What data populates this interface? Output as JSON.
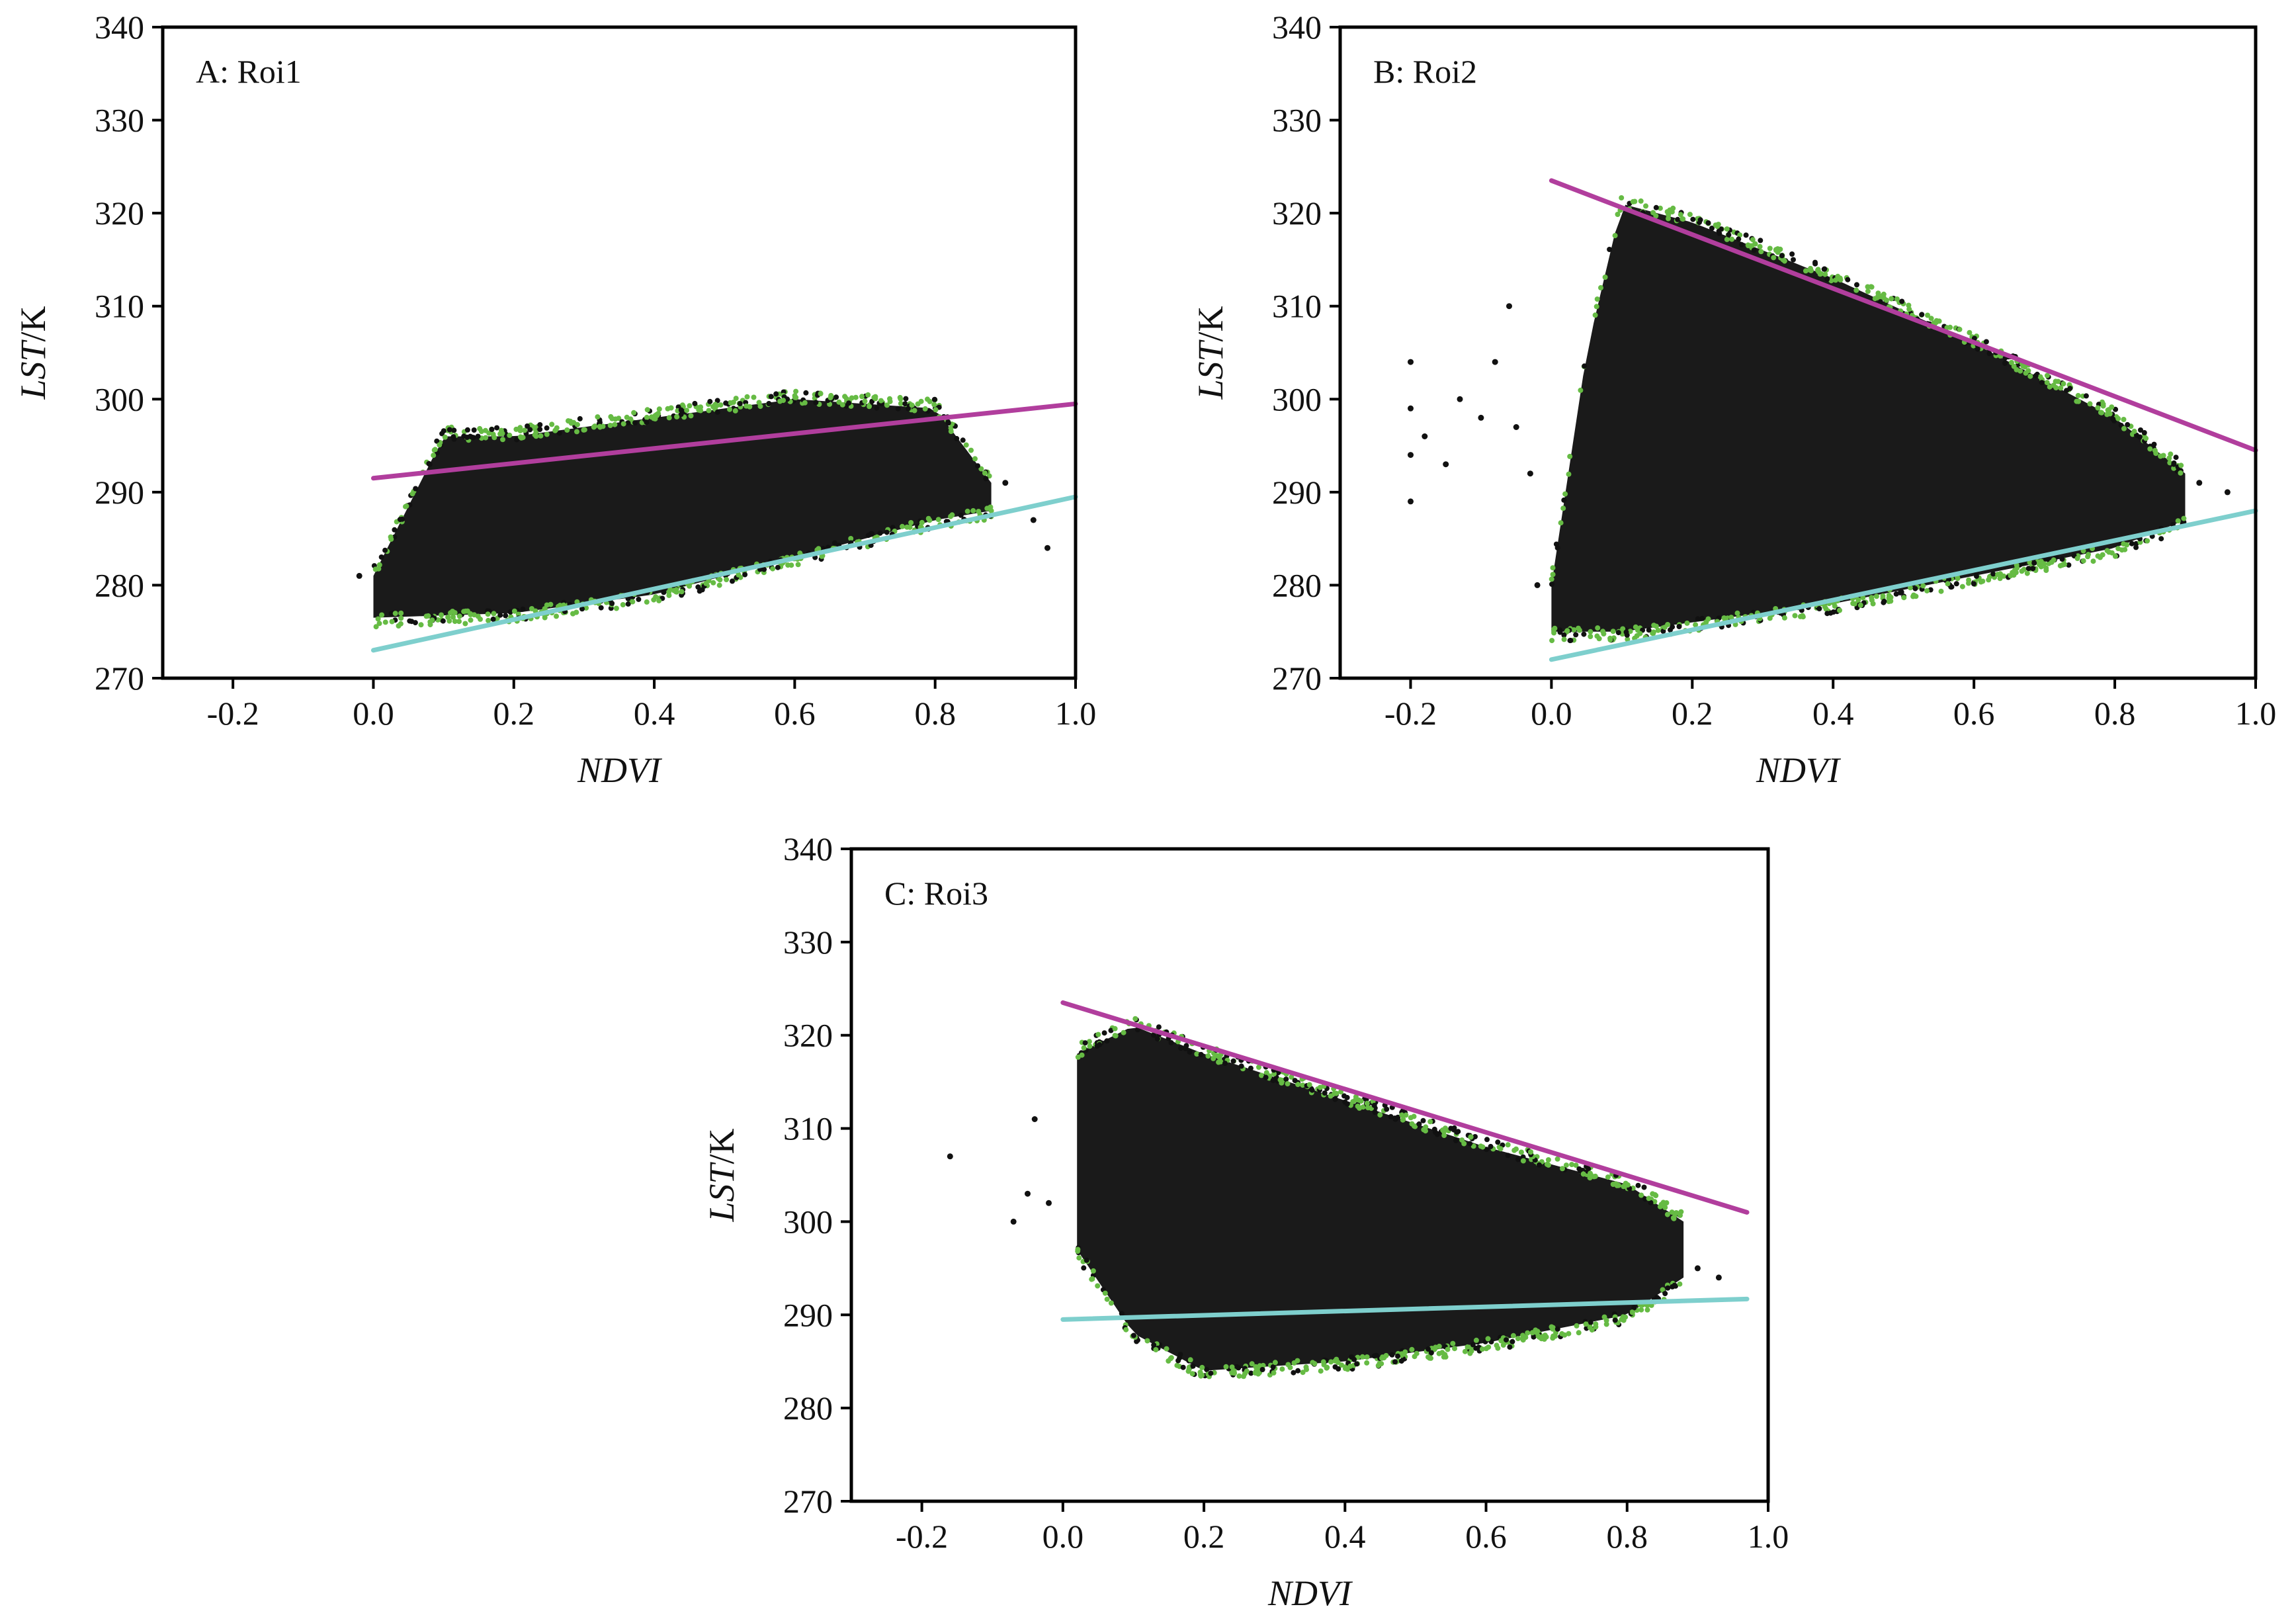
{
  "figure": {
    "colors": {
      "scatter": "#111111",
      "edge_points": "#66bb44",
      "dry_edge": "#b13e9d",
      "wet_edge": "#7ecfcd",
      "axes": "#000000"
    }
  },
  "chart_data": [
    {
      "type": "scatter",
      "panel_label": "A: Roi1",
      "xlabel": "NDVI",
      "ylabel_italic": "LST",
      "ylabel_unit": "/K",
      "xlim": [
        -0.3,
        1.0
      ],
      "ylim": [
        270,
        340
      ],
      "xticks": [
        -0.2,
        0.0,
        0.2,
        0.4,
        0.6,
        0.8,
        1.0
      ],
      "xtick_labels": [
        "-0.2",
        "0.0",
        "0.2",
        "0.4",
        "0.6",
        "0.8",
        "1.0"
      ],
      "yticks": [
        270,
        280,
        290,
        300,
        310,
        320,
        330,
        340
      ],
      "ytick_labels": [
        "270",
        "280",
        "290",
        "300",
        "310",
        "320",
        "330",
        "340"
      ],
      "series": [
        {
          "name": "pixels",
          "kind": "cloud",
          "x_range": [
            0.0,
            0.88
          ],
          "lower_envelope": [
            [
              0.0,
              276.5
            ],
            [
              0.2,
              277
            ],
            [
              0.4,
              279
            ],
            [
              0.6,
              283
            ],
            [
              0.8,
              287
            ],
            [
              0.88,
              288
            ]
          ],
          "upper_envelope": [
            [
              0.0,
              281
            ],
            [
              0.1,
              296
            ],
            [
              0.2,
              296
            ],
            [
              0.4,
              298
            ],
            [
              0.6,
              300
            ],
            [
              0.8,
              299
            ],
            [
              0.88,
              291
            ]
          ],
          "stray_points": [
            [
              -0.02,
              281
            ],
            [
              0.9,
              291
            ],
            [
              0.94,
              287
            ],
            [
              0.96,
              284
            ]
          ]
        },
        {
          "name": "dry edge",
          "kind": "line",
          "x": [
            0.0,
            1.0
          ],
          "y": [
            291.5,
            299.5
          ]
        },
        {
          "name": "wet edge",
          "kind": "line",
          "x": [
            0.0,
            1.0
          ],
          "y": [
            273,
            289.5
          ]
        }
      ]
    },
    {
      "type": "scatter",
      "panel_label": "B: Roi2",
      "xlabel": "NDVI",
      "ylabel_italic": "LST",
      "ylabel_unit": "/K",
      "xlim": [
        -0.3,
        1.0
      ],
      "ylim": [
        270,
        340
      ],
      "xticks": [
        -0.2,
        0.0,
        0.2,
        0.4,
        0.6,
        0.8,
        1.0
      ],
      "xtick_labels": [
        "-0.2",
        "0.0",
        "0.2",
        "0.4",
        "0.6",
        "0.8",
        "1.0"
      ],
      "yticks": [
        270,
        280,
        290,
        300,
        310,
        320,
        330,
        340
      ],
      "ytick_labels": [
        "270",
        "280",
        "290",
        "300",
        "310",
        "320",
        "330",
        "340"
      ],
      "series": [
        {
          "name": "pixels",
          "kind": "cloud",
          "x_range": [
            0.0,
            0.9
          ],
          "lower_envelope": [
            [
              0.0,
              275
            ],
            [
              0.1,
              275
            ],
            [
              0.2,
              276
            ],
            [
              0.4,
              278
            ],
            [
              0.6,
              281
            ],
            [
              0.8,
              284
            ],
            [
              0.9,
              287
            ]
          ],
          "upper_envelope": [
            [
              0.0,
              280
            ],
            [
              0.05,
              305
            ],
            [
              0.1,
              321
            ],
            [
              0.2,
              319
            ],
            [
              0.4,
              313
            ],
            [
              0.6,
              306
            ],
            [
              0.8,
              298
            ],
            [
              0.9,
              292
            ]
          ],
          "stray_points": [
            [
              -0.2,
              289
            ],
            [
              -0.2,
              294
            ],
            [
              -0.2,
              299
            ],
            [
              -0.2,
              304
            ],
            [
              -0.18,
              296
            ],
            [
              -0.15,
              293
            ],
            [
              -0.13,
              300
            ],
            [
              -0.1,
              298
            ],
            [
              -0.08,
              304
            ],
            [
              -0.06,
              310
            ],
            [
              -0.05,
              297
            ],
            [
              -0.03,
              292
            ],
            [
              -0.02,
              280
            ],
            [
              0.92,
              291
            ],
            [
              0.96,
              290
            ]
          ]
        },
        {
          "name": "dry edge",
          "kind": "line",
          "x": [
            0.0,
            1.0
          ],
          "y": [
            323.5,
            294.5
          ]
        },
        {
          "name": "wet edge",
          "kind": "line",
          "x": [
            0.0,
            1.0
          ],
          "y": [
            272,
            288
          ]
        }
      ]
    },
    {
      "type": "scatter",
      "panel_label": "C: Roi3",
      "xlabel": "NDVI",
      "ylabel_italic": "LST",
      "ylabel_unit": "/K",
      "xlim": [
        -0.3,
        1.0
      ],
      "ylim": [
        270,
        340
      ],
      "xticks": [
        -0.2,
        0.0,
        0.2,
        0.4,
        0.6,
        0.8,
        1.0
      ],
      "xtick_labels": [
        "-0.2",
        "0.0",
        "0.2",
        "0.4",
        "0.6",
        "0.8",
        "1.0"
      ],
      "yticks": [
        270,
        280,
        290,
        300,
        310,
        320,
        330,
        340
      ],
      "ytick_labels": [
        "270",
        "280",
        "290",
        "300",
        "310",
        "320",
        "330",
        "340"
      ],
      "series": [
        {
          "name": "pixels",
          "kind": "cloud",
          "x_range": [
            0.02,
            0.88
          ],
          "lower_envelope": [
            [
              0.02,
              297
            ],
            [
              0.1,
              288
            ],
            [
              0.2,
              284
            ],
            [
              0.4,
              285
            ],
            [
              0.6,
              287
            ],
            [
              0.8,
              290
            ],
            [
              0.88,
              294
            ]
          ],
          "upper_envelope": [
            [
              0.02,
              318
            ],
            [
              0.1,
              321
            ],
            [
              0.2,
              318
            ],
            [
              0.4,
              313
            ],
            [
              0.6,
              308
            ],
            [
              0.8,
              304
            ],
            [
              0.88,
              300
            ]
          ],
          "stray_points": [
            [
              -0.16,
              307
            ],
            [
              -0.07,
              300
            ],
            [
              -0.05,
              303
            ],
            [
              -0.04,
              311
            ],
            [
              -0.02,
              302
            ],
            [
              0.9,
              295
            ],
            [
              0.93,
              294
            ]
          ]
        },
        {
          "name": "dry edge",
          "kind": "line",
          "x": [
            0.0,
            0.97
          ],
          "y": [
            323.5,
            301
          ]
        },
        {
          "name": "wet edge",
          "kind": "line",
          "x": [
            0.0,
            0.97
          ],
          "y": [
            289.5,
            291.7
          ]
        }
      ]
    }
  ]
}
